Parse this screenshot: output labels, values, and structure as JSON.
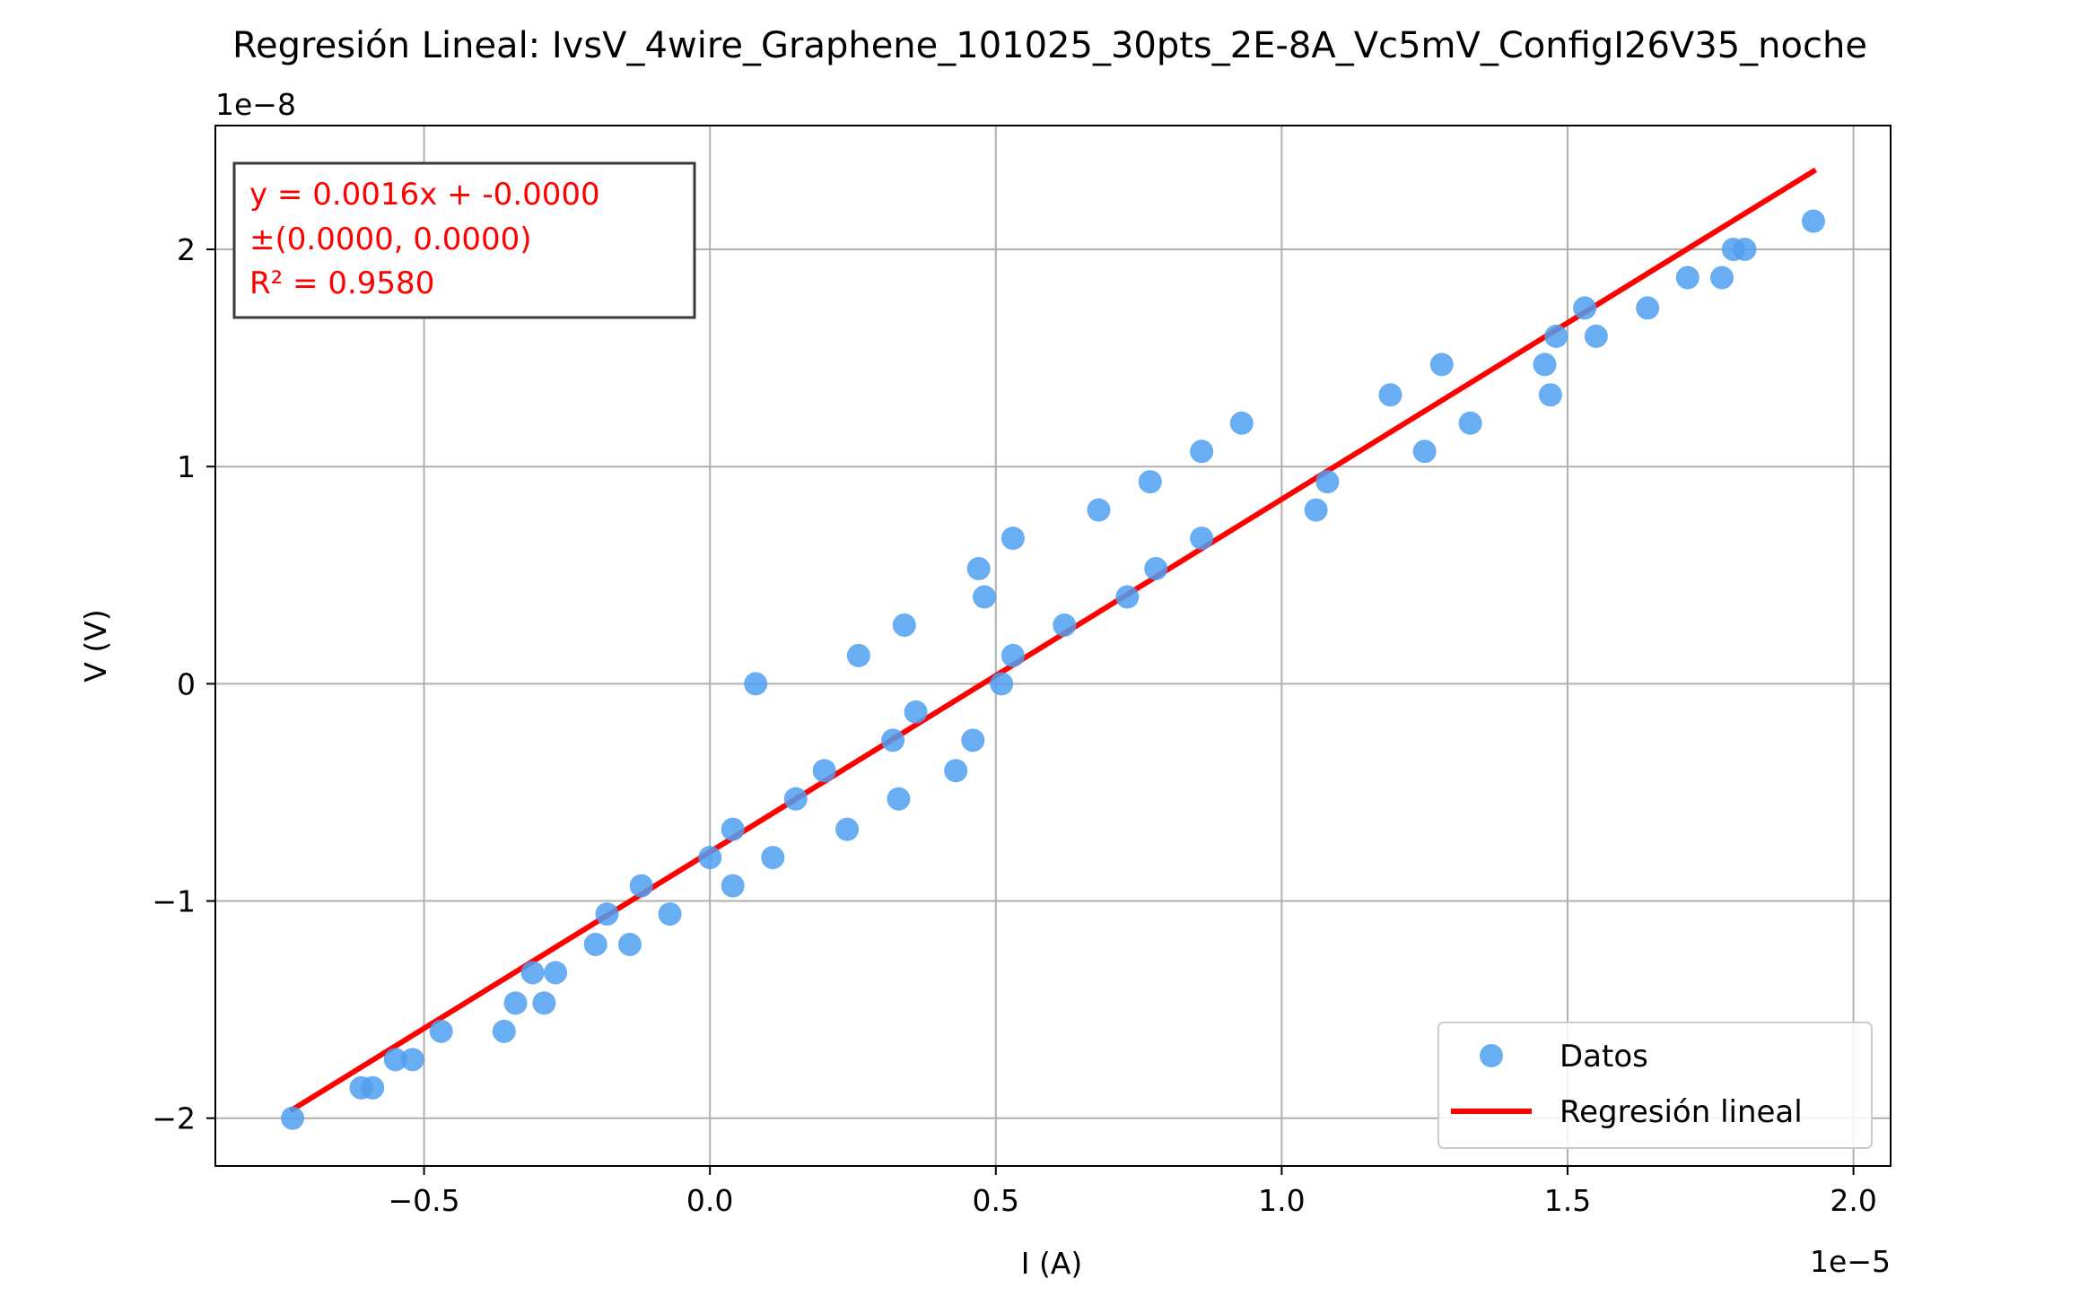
{
  "chart_data": {
    "type": "scatter",
    "title": "Regresión Lineal: IvsV_4wire_Graphene_101025_30pts_2E-8A_Vc5mV_ConfigI26V35_noche",
    "xlabel": "I (A)",
    "ylabel": "V (V)",
    "x_offset_text": "1e−5",
    "y_offset_text": "1e−8",
    "x_scale_note": "x values in units of 1e-5 A",
    "y_scale_note": "y values in units of 1e-8 V",
    "xlim": [
      -0.865,
      2.065
    ],
    "ylim": [
      -2.22,
      2.57
    ],
    "x_ticks": [
      -0.5,
      0.0,
      0.5,
      1.0,
      1.5,
      2.0
    ],
    "x_tick_labels": [
      "−0.5",
      "0.0",
      "0.5",
      "1.0",
      "1.5",
      "2.0"
    ],
    "y_ticks": [
      -2,
      -1,
      0,
      1,
      2
    ],
    "y_tick_labels": [
      "−2",
      "−1",
      "0",
      "1",
      "2"
    ],
    "grid": true,
    "legend_position": "lower-right",
    "series": [
      {
        "name": "Datos",
        "kind": "scatter",
        "color": "#4f9ff0",
        "points": [
          [
            -0.73,
            -2.0
          ],
          [
            -0.61,
            -1.86
          ],
          [
            -0.59,
            -1.86
          ],
          [
            -0.55,
            -1.73
          ],
          [
            -0.52,
            -1.73
          ],
          [
            -0.47,
            -1.6
          ],
          [
            -0.36,
            -1.6
          ],
          [
            -0.34,
            -1.47
          ],
          [
            -0.31,
            -1.33
          ],
          [
            -0.29,
            -1.47
          ],
          [
            -0.27,
            -1.33
          ],
          [
            -0.2,
            -1.2
          ],
          [
            -0.18,
            -1.06
          ],
          [
            -0.14,
            -1.2
          ],
          [
            -0.12,
            -0.93
          ],
          [
            -0.07,
            -1.06
          ],
          [
            0.0,
            -0.8
          ],
          [
            0.04,
            -0.67
          ],
          [
            0.04,
            -0.93
          ],
          [
            0.08,
            0.0
          ],
          [
            0.11,
            -0.8
          ],
          [
            0.15,
            -0.53
          ],
          [
            0.2,
            -0.4
          ],
          [
            0.24,
            -0.67
          ],
          [
            0.26,
            0.13
          ],
          [
            0.32,
            -0.26
          ],
          [
            0.33,
            -0.53
          ],
          [
            0.34,
            0.27
          ],
          [
            0.36,
            -0.13
          ],
          [
            0.43,
            -0.4
          ],
          [
            0.46,
            -0.26
          ],
          [
            0.47,
            0.53
          ],
          [
            0.48,
            0.4
          ],
          [
            0.51,
            0.0
          ],
          [
            0.53,
            0.67
          ],
          [
            0.53,
            0.13
          ],
          [
            0.62,
            0.27
          ],
          [
            0.68,
            0.8
          ],
          [
            0.73,
            0.4
          ],
          [
            0.77,
            0.93
          ],
          [
            0.78,
            0.53
          ],
          [
            0.86,
            1.07
          ],
          [
            0.86,
            0.67
          ],
          [
            0.93,
            1.2
          ],
          [
            1.06,
            0.8
          ],
          [
            1.08,
            0.93
          ],
          [
            1.19,
            1.33
          ],
          [
            1.25,
            1.07
          ],
          [
            1.28,
            1.47
          ],
          [
            1.33,
            1.2
          ],
          [
            1.46,
            1.47
          ],
          [
            1.47,
            1.33
          ],
          [
            1.48,
            1.6
          ],
          [
            1.53,
            1.73
          ],
          [
            1.55,
            1.6
          ],
          [
            1.64,
            1.73
          ],
          [
            1.71,
            1.87
          ],
          [
            1.77,
            1.87
          ],
          [
            1.79,
            2.0
          ],
          [
            1.81,
            2.0
          ],
          [
            1.93,
            2.13
          ]
        ]
      },
      {
        "name": "Regresión lineal",
        "kind": "line",
        "color": "#ff0000",
        "points": [
          [
            -0.73,
            -1.96
          ],
          [
            1.93,
            2.36
          ]
        ]
      }
    ],
    "annotation": {
      "lines": [
        "y = 0.0016x + -0.0000",
        "±(0.0000, 0.0000)",
        "R² = 0.9580"
      ],
      "color": "#ff0000",
      "position": "top-left"
    }
  }
}
